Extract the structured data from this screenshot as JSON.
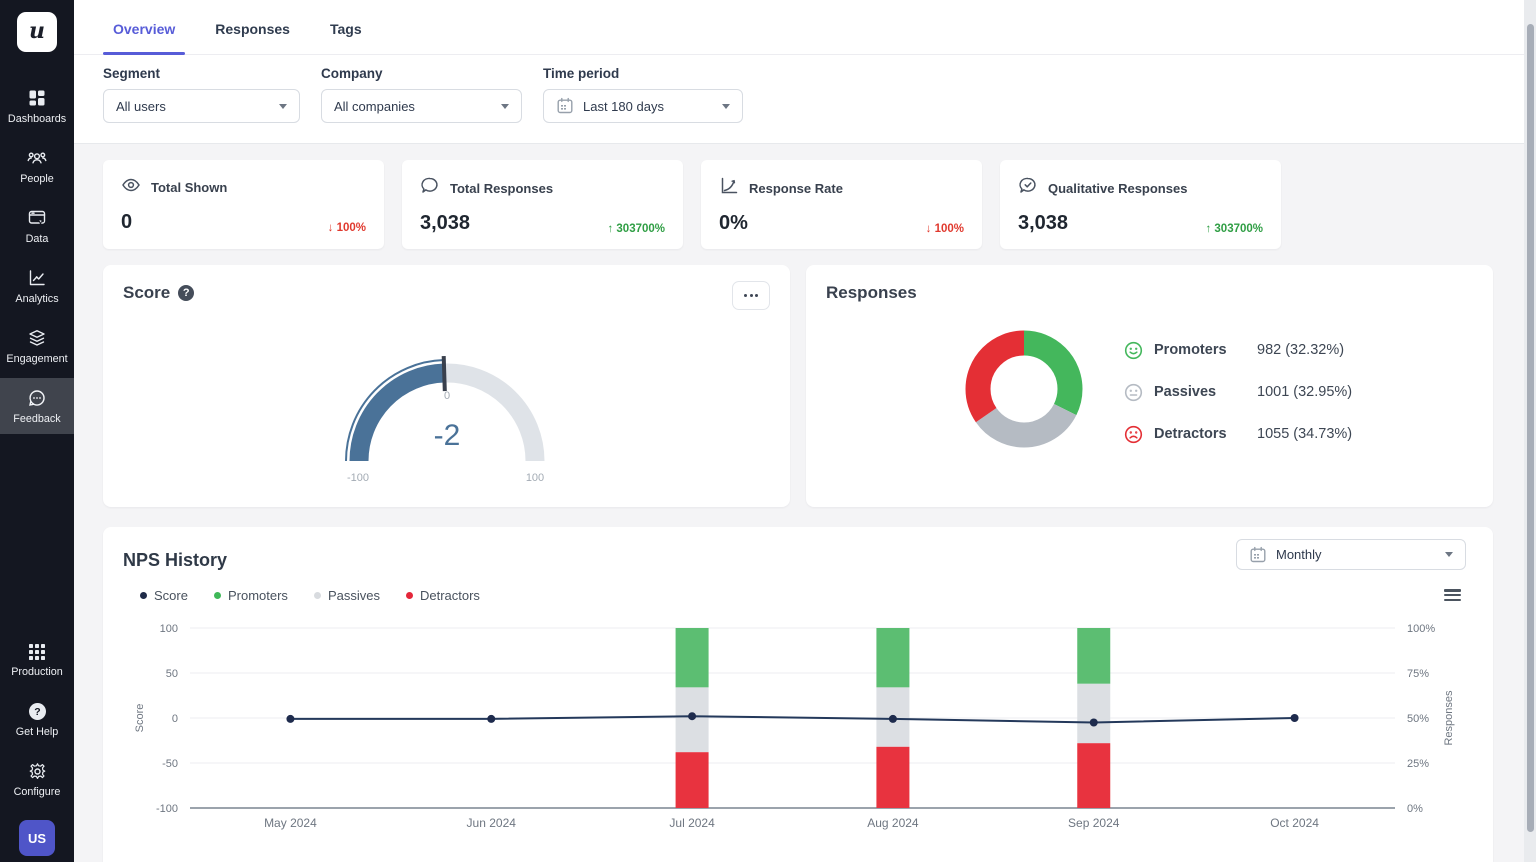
{
  "brand": {
    "logo_letter": "u",
    "avatar": "US"
  },
  "sidebar": {
    "items": [
      {
        "label": "Dashboards"
      },
      {
        "label": "People"
      },
      {
        "label": "Data"
      },
      {
        "label": "Analytics"
      },
      {
        "label": "Engagement"
      },
      {
        "label": "Feedback"
      }
    ],
    "bottom_items": [
      {
        "label": "Production"
      },
      {
        "label": "Get Help"
      },
      {
        "label": "Configure"
      }
    ]
  },
  "tabs": [
    {
      "label": "Overview"
    },
    {
      "label": "Responses"
    },
    {
      "label": "Tags"
    }
  ],
  "filters": {
    "segment": {
      "label": "Segment",
      "value": "All users"
    },
    "company": {
      "label": "Company",
      "value": "All companies"
    },
    "time_period": {
      "label": "Time period",
      "value": "Last 180 days"
    }
  },
  "stats": [
    {
      "title": "Total Shown",
      "value": "0",
      "change": "↓ 100%",
      "change_color": "#e0392e"
    },
    {
      "title": "Total Responses",
      "value": "3,038",
      "change": "↑ 303700%",
      "change_color": "#2f9e44"
    },
    {
      "title": "Response Rate",
      "value": "0%",
      "change": "↓ 100%",
      "change_color": "#e0392e"
    },
    {
      "title": "Qualitative Responses",
      "value": "3,038",
      "change": "↑ 303700%",
      "change_color": "#2f9e44"
    }
  ],
  "score_card": {
    "title": "Score"
  },
  "responses_card": {
    "title": "Responses",
    "legend": [
      {
        "label": "Promoters",
        "value": "982 (32.32%)",
        "color": "#44b75c"
      },
      {
        "label": "Passives",
        "value": "1001 (32.95%)",
        "color": "#b5bbc3"
      },
      {
        "label": "Detractors",
        "value": "1055 (34.73%)",
        "color": "#e42f35"
      }
    ]
  },
  "nps_card": {
    "title": "NPS History",
    "period_value": "Monthly",
    "legend": [
      {
        "label": "Score",
        "color": "#1f2b48"
      },
      {
        "label": "Promoters",
        "color": "#3fb858"
      },
      {
        "label": "Passives",
        "color": "#d8dbdf"
      },
      {
        "label": "Detractors",
        "color": "#e4273a"
      }
    ]
  },
  "chart_data": [
    {
      "type": "gauge",
      "title": "Score",
      "value": -2,
      "min": -100,
      "max": 100,
      "tick_labels": {
        "min": "-100",
        "mid": "0",
        "max": "100"
      },
      "fill_color": "#4a7298",
      "track_color": "#dfe3e8",
      "needle_color": "#39404d",
      "value_color": "#4a7298"
    },
    {
      "type": "pie",
      "title": "Responses",
      "donut": true,
      "labels": [
        "Promoters",
        "Passives",
        "Detractors"
      ],
      "values": [
        982,
        1001,
        1055
      ],
      "percents": [
        32.32,
        32.95,
        34.73
      ],
      "colors": [
        "#44b75c",
        "#b5bbc3",
        "#e42f35"
      ]
    },
    {
      "type": "bar+line",
      "title": "NPS History",
      "categories": [
        "May 2024",
        "Jun 2024",
        "Jul 2024",
        "Aug 2024",
        "Sep 2024",
        "Oct 2024"
      ],
      "line_series": {
        "name": "Score",
        "values": [
          -1,
          -1,
          2,
          -1,
          -5,
          0
        ],
        "color": "#24395b",
        "axis": "left"
      },
      "bar_series": [
        {
          "name": "Promoters",
          "values": [
            null,
            null,
            33,
            33,
            31,
            null
          ],
          "color": "#5cbe72"
        },
        {
          "name": "Passives",
          "values": [
            null,
            null,
            36,
            33,
            33,
            null
          ],
          "color": "#dcdfe3"
        },
        {
          "name": "Detractors",
          "values": [
            null,
            null,
            31,
            34,
            36,
            null
          ],
          "color": "#e8333f"
        }
      ],
      "left_axis": {
        "label": "Score",
        "ticks": [
          100,
          50,
          0,
          -50,
          -100
        ],
        "range": [
          -100,
          100
        ]
      },
      "right_axis": {
        "label": "Responses",
        "ticks": [
          "100%",
          "75%",
          "50%",
          "25%",
          "0%"
        ],
        "range": [
          0,
          100
        ]
      },
      "grid": true,
      "legend_position": "top-left"
    }
  ]
}
